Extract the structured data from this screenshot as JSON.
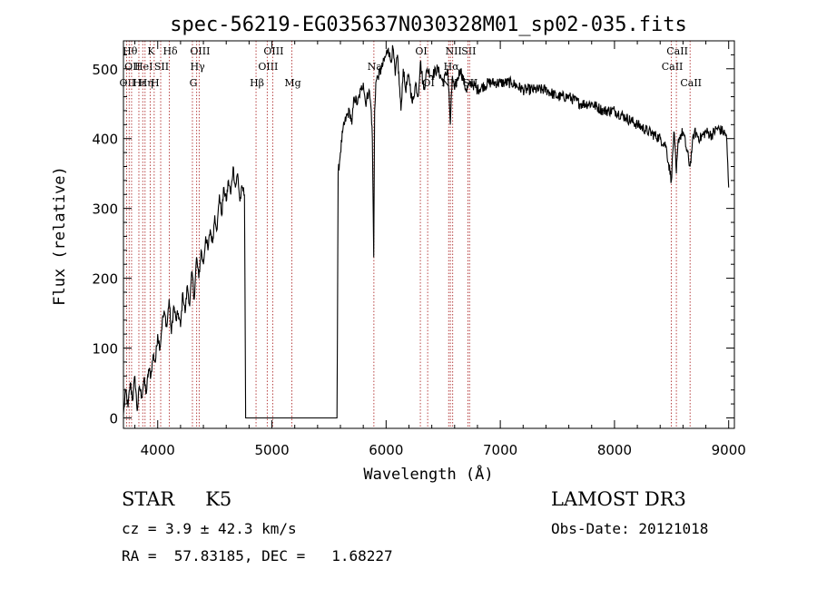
{
  "chart_data": {
    "type": "line",
    "title": "spec-56219-EG035637N030328M01_sp02-035.fits",
    "xlabel": "Wavelength (Å)",
    "ylabel": "Flux (relative)",
    "xlim": [
      3700,
      9050
    ],
    "ylim": [
      -15,
      540
    ],
    "xticks": [
      4000,
      5000,
      6000,
      7000,
      8000,
      9000
    ],
    "yticks": [
      0,
      100,
      200,
      300,
      400,
      500
    ],
    "series": [
      {
        "x": [
          3700,
          3720,
          3740,
          3760,
          3780,
          3800,
          3820,
          3840,
          3860,
          3880,
          3900,
          3920,
          3940,
          3960,
          3980,
          4000,
          4020,
          4040,
          4060,
          4080,
          4100,
          4120,
          4140,
          4160,
          4180,
          4200,
          4220,
          4240,
          4260,
          4280,
          4300,
          4320,
          4340,
          4360,
          4380,
          4400,
          4420,
          4440,
          4460,
          4480,
          4500,
          4520,
          4540,
          4560,
          4580,
          4600,
          4620,
          4640,
          4660,
          4680,
          4700,
          4720,
          4740,
          4760,
          4770,
          4780,
          5000,
          5200,
          5400,
          5570,
          5580,
          5600,
          5620,
          5650,
          5680,
          5700,
          5720,
          5750,
          5780,
          5800,
          5820,
          5850,
          5870,
          5880,
          5892,
          5900,
          5910,
          5930,
          5960,
          6000,
          6020,
          6040,
          6060,
          6080,
          6100,
          6130,
          6150,
          6170,
          6200,
          6230,
          6260,
          6280,
          6300,
          6330,
          6360,
          6400,
          6450,
          6500,
          6540,
          6563,
          6580,
          6600,
          6650,
          6700,
          6750,
          6800,
          6900,
          7000,
          7100,
          7200,
          7300,
          7400,
          7500,
          7600,
          7700,
          7800,
          7900,
          8000,
          8100,
          8200,
          8300,
          8400,
          8450,
          8498,
          8520,
          8542,
          8560,
          8600,
          8662,
          8680,
          8700,
          8750,
          8800,
          8850,
          8900,
          8950,
          8980,
          9000
        ],
        "y": [
          5,
          40,
          15,
          50,
          25,
          60,
          10,
          45,
          30,
          55,
          35,
          70,
          60,
          90,
          80,
          120,
          100,
          140,
          150,
          130,
          170,
          120,
          160,
          140,
          150,
          130,
          180,
          150,
          190,
          160,
          210,
          170,
          230,
          200,
          240,
          220,
          260,
          240,
          270,
          250,
          290,
          270,
          320,
          290,
          330,
          310,
          340,
          320,
          360,
          330,
          350,
          310,
          330,
          320,
          0,
          0,
          0,
          0,
          0,
          0,
          350,
          380,
          410,
          430,
          440,
          420,
          460,
          450,
          470,
          480,
          450,
          470,
          440,
          400,
          230,
          440,
          480,
          490,
          500,
          520,
          530,
          510,
          530,
          490,
          520,
          440,
          500,
          470,
          490,
          450,
          480,
          460,
          510,
          470,
          500,
          490,
          500,
          480,
          500,
          420,
          490,
          470,
          500,
          470,
          480,
          470,
          480,
          480,
          480,
          470,
          470,
          470,
          460,
          460,
          450,
          450,
          440,
          440,
          430,
          420,
          410,
          400,
          390,
          340,
          410,
          350,
          400,
          410,
          360,
          390,
          410,
          400,
          410,
          405,
          415,
          410,
          405,
          330
        ]
      }
    ],
    "spectral_lines": [
      {
        "x": 3727,
        "label": "OII",
        "row": 3
      },
      {
        "x": 3750,
        "label": "Hθ",
        "row": 1
      },
      {
        "x": 3771,
        "label": "OII",
        "row": 2
      },
      {
        "x": 3835,
        "label": "Hε",
        "row": 3
      },
      {
        "x": 3869,
        "label": "HeI",
        "row": 2
      },
      {
        "x": 3889,
        "label": "Hη",
        "row": 3
      },
      {
        "x": 3934,
        "label": "K",
        "row": 1
      },
      {
        "x": 3969,
        "label": "H",
        "row": 3
      },
      {
        "x": 4026,
        "label": "SII",
        "row": 2
      },
      {
        "x": 4102,
        "label": "Hδ",
        "row": 1
      },
      {
        "x": 4304,
        "label": "G",
        "row": 3
      },
      {
        "x": 4341,
        "label": "Hγ",
        "row": 2
      },
      {
        "x": 4363,
        "label": "OIII",
        "row": 1
      },
      {
        "x": 4861,
        "label": "Hβ",
        "row": 3
      },
      {
        "x": 4959,
        "label": "OIII",
        "row": 2
      },
      {
        "x": 5007,
        "label": "OIII",
        "row": 1
      },
      {
        "x": 5175,
        "label": "Mg",
        "row": 3
      },
      {
        "x": 5893,
        "label": "Na",
        "row": 2
      },
      {
        "x": 6300,
        "label": "OI",
        "row": 1
      },
      {
        "x": 6364,
        "label": "OI",
        "row": 3
      },
      {
        "x": 6548,
        "label": "NII",
        "row": 3
      },
      {
        "x": 6563,
        "label": "Hα",
        "row": 2
      },
      {
        "x": 6583,
        "label": "NII",
        "row": 1
      },
      {
        "x": 6716,
        "label": "SII",
        "row": 1
      },
      {
        "x": 6731,
        "label": "SII",
        "row": 3
      },
      {
        "x": 8498,
        "label": "CaII",
        "row": 2
      },
      {
        "x": 8542,
        "label": "CaII",
        "row": 1
      },
      {
        "x": 8662,
        "label": "CaII",
        "row": 3
      }
    ]
  },
  "info": {
    "class_label": "STAR",
    "subclass": "K5",
    "survey": "LAMOST DR3",
    "cz_line": "cz = 3.9 ± 42.3 km/s",
    "obs_date": "Obs-Date: 20121018",
    "radec_line": "RA =  57.83185, DEC =   1.68227"
  }
}
